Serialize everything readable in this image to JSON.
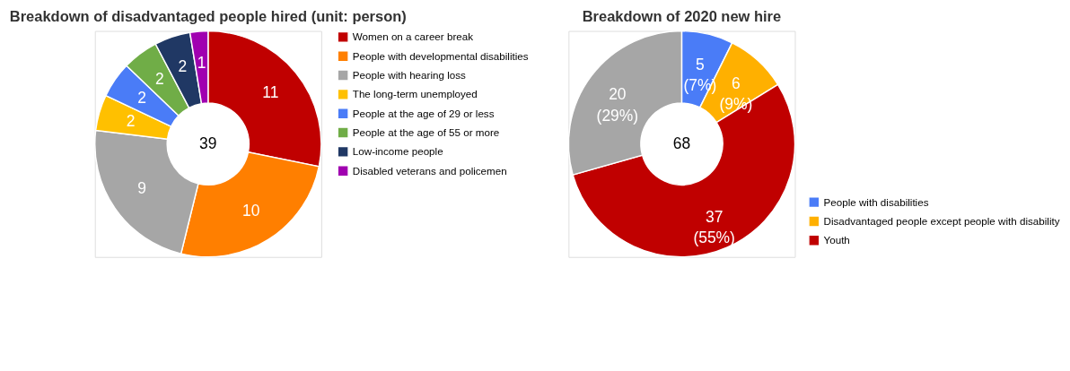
{
  "chart_data": [
    {
      "type": "donut",
      "title": "Breakdown of disadvantaged people hired (unit: person)",
      "categories": [
        "Women on a career break",
        "People with developmental disabilities",
        "People with hearing loss",
        "The long-term unemployed",
        "People at the age of 29 or less",
        "People at the age of 55 or more",
        "Low-income people",
        "Disabled veterans and policemen"
      ],
      "values": [
        11,
        10,
        9,
        2,
        2,
        2,
        2,
        1
      ],
      "colors": [
        "#c00000",
        "#ff7f00",
        "#a6a6a6",
        "#ffc000",
        "#4a7cf7",
        "#70ad47",
        "#203864",
        "#a000b0"
      ],
      "data_labels": true,
      "legend": "right",
      "annotations": [
        "39"
      ]
    },
    {
      "type": "donut",
      "title": "Breakdown of 2020 new hire",
      "categories": [
        "People with disabilities",
        "Disadvantaged people except people with disability",
        "Youth",
        null
      ],
      "values": [
        5,
        6,
        37,
        20
      ],
      "colors": [
        "#4a7cf7",
        "#ffb000",
        "#c00000",
        "#a6a6a6"
      ],
      "value_labels": [
        "5\n(7%)",
        "6\n(9%)",
        "37\n(55%)",
        "20\n(29%)"
      ],
      "legend": "bottom right",
      "annotations": [
        "68"
      ]
    }
  ]
}
